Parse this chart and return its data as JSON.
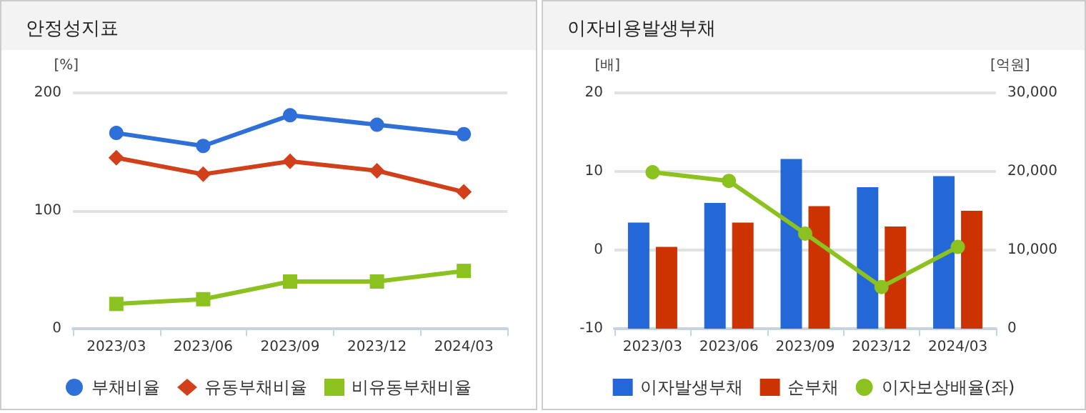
{
  "chart_data": [
    {
      "type": "line",
      "title": "안정성지표",
      "ylabel": "[%]",
      "categories": [
        "2023/03",
        "2023/06",
        "2023/09",
        "2023/12",
        "2024/03"
      ],
      "ylim": [
        0,
        200
      ],
      "yticks": [
        0,
        100,
        200
      ],
      "grid": "y",
      "legend": "bottom",
      "series": [
        {
          "name": "부채비율",
          "color": "#2f6fd8",
          "marker": "circle",
          "values": [
            166,
            155,
            181,
            173,
            165
          ]
        },
        {
          "name": "유동부채비율",
          "color": "#d2401b",
          "marker": "diamond",
          "values": [
            145,
            131,
            142,
            134,
            116
          ]
        },
        {
          "name": "비유동부채비율",
          "color": "#8cc21f",
          "marker": "square",
          "values": [
            21,
            25,
            40,
            40,
            49
          ]
        }
      ]
    },
    {
      "type": "bar",
      "title": "이자비용발생부채",
      "ylabel": "[배]",
      "y2label": "[억원]",
      "categories": [
        "2023/03",
        "2023/06",
        "2023/09",
        "2023/12",
        "2024/03"
      ],
      "ylim": [
        -10,
        20
      ],
      "yticks": [
        -10,
        0,
        10,
        20
      ],
      "y2lim": [
        0,
        30000
      ],
      "y2ticks": [
        0,
        {
          "value": 10000,
          "label": "10,000"
        },
        {
          "value": 20000,
          "label": "20,000"
        },
        {
          "value": 30000,
          "label": "30,000"
        }
      ],
      "grid": "y",
      "legend": "bottom",
      "series": [
        {
          "name": "이자발생부채",
          "color": "#2468d8",
          "axis": "y2",
          "values": [
            13500,
            16000,
            21600,
            18000,
            19400
          ]
        },
        {
          "name": "순부채",
          "color": "#cc3300",
          "axis": "y2",
          "values": [
            10400,
            13500,
            15600,
            13000,
            15000
          ]
        },
        {
          "name": "이자보상배율(좌)",
          "type": "line",
          "color": "#8cc21f",
          "marker": "circle",
          "values": [
            9.9,
            8.8,
            2.1,
            -4.7,
            0.4
          ]
        }
      ]
    }
  ]
}
